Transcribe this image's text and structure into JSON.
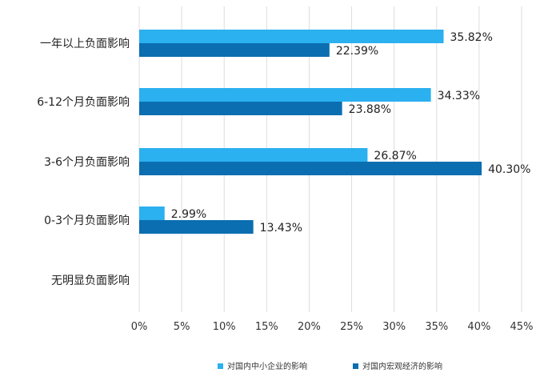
{
  "chart_data": {
    "type": "bar",
    "orientation": "horizontal",
    "categories": [
      "一年以上负面影响",
      "6-12个月负面影响",
      "3-6个月负面影响",
      "0-3个月负面影响",
      "无明显负面影响"
    ],
    "series": [
      {
        "name": "对国内中小企业的影响",
        "values": [
          35.82,
          34.33,
          26.87,
          2.99,
          null
        ],
        "labels": [
          "35.82%",
          "34.33%",
          "26.87%",
          "2.99%",
          ""
        ],
        "color": "#2BB0F0"
      },
      {
        "name": "对国内宏观经济的影响",
        "values": [
          22.39,
          23.88,
          40.3,
          13.43,
          null
        ],
        "labels": [
          "22.39%",
          "23.88%",
          "40.30%",
          "13.43%",
          ""
        ],
        "color": "#0B6EB0"
      }
    ],
    "x_ticks": [
      "0%",
      "5%",
      "10%",
      "15%",
      "20%",
      "25%",
      "30%",
      "35%",
      "40%",
      "45%"
    ],
    "xlim": [
      0,
      45
    ],
    "grid": true,
    "legend_position": "bottom"
  }
}
